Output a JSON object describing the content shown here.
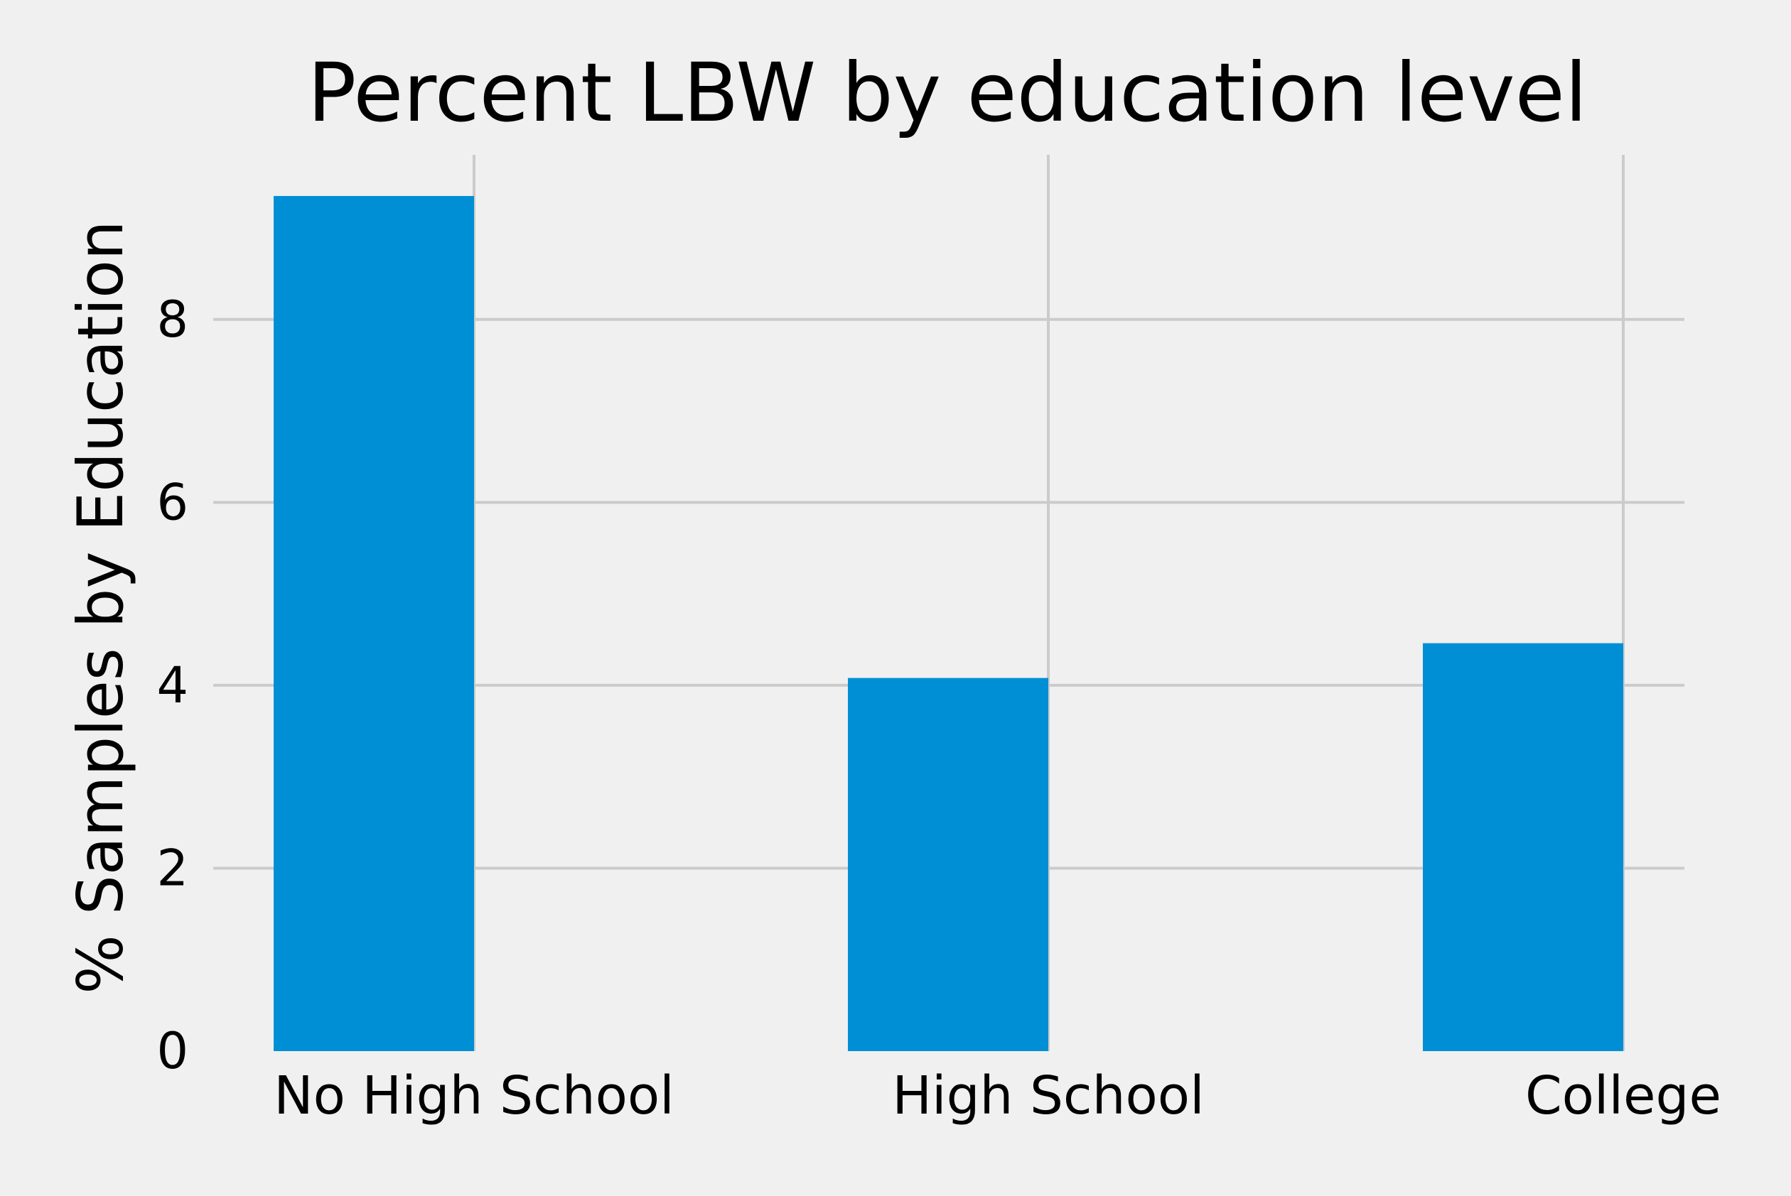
{
  "chart_data": {
    "type": "bar",
    "title": "Percent LBW by education level",
    "xlabel": "",
    "ylabel": "% Samples by Education",
    "categories": [
      "No High School",
      "High School",
      "College"
    ],
    "values": [
      9.35,
      4.08,
      4.46
    ],
    "yticks": [
      0,
      2,
      4,
      6,
      8
    ],
    "ytick_labels": [
      "0",
      "2",
      "4",
      "6",
      "8"
    ],
    "ylim": [
      0,
      9.8
    ],
    "grid": true,
    "bar_color": "#008fd5",
    "grid_color": "#cbcbcb",
    "background_color": "#f0f0f0",
    "bar_alignment": "edge-left-of-tick"
  }
}
